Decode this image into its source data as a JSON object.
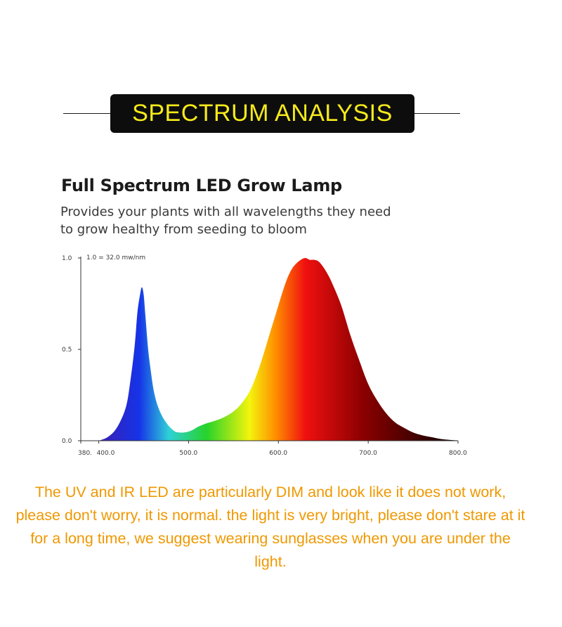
{
  "banner": {
    "title": "SPECTRUM ANALYSIS"
  },
  "chart_data": {
    "type": "area",
    "title": "Full Spectrum LED Grow Lamp",
    "subtitle_lines": [
      "Provides your plants with all wavelengths they need",
      "to grow healthy from seeding to bloom"
    ],
    "annotation": "1.0 = 32.0 mw/nm",
    "x_ticks": [
      {
        "value": 380,
        "label": "380."
      },
      {
        "value": 400,
        "label": "400.0"
      },
      {
        "value": 500,
        "label": "500.0"
      },
      {
        "value": 600,
        "label": "600.0"
      },
      {
        "value": 700,
        "label": "700.0"
      },
      {
        "value": 800,
        "label": "800.0"
      }
    ],
    "y_ticks": [
      {
        "value": 0.0,
        "label": "0.0"
      },
      {
        "value": 0.5,
        "label": "0.5"
      },
      {
        "value": 1.0,
        "label": "1.0"
      }
    ],
    "xlim": [
      380,
      800
    ],
    "ylim": [
      0,
      1.0
    ],
    "x": [
      400,
      410,
      420,
      430,
      435,
      440,
      443,
      446,
      448,
      450,
      452,
      455,
      458,
      461,
      465,
      470,
      475,
      480,
      485,
      490,
      495,
      500,
      505,
      510,
      520,
      530,
      540,
      550,
      560,
      570,
      580,
      590,
      600,
      605,
      610,
      615,
      620,
      625,
      630,
      635,
      640,
      645,
      650,
      655,
      660,
      670,
      680,
      690,
      700,
      710,
      720,
      730,
      740,
      750,
      760,
      770,
      780,
      790,
      800
    ],
    "y": [
      0.0,
      0.02,
      0.07,
      0.18,
      0.32,
      0.52,
      0.7,
      0.8,
      0.84,
      0.8,
      0.68,
      0.5,
      0.38,
      0.28,
      0.2,
      0.14,
      0.1,
      0.07,
      0.05,
      0.045,
      0.045,
      0.05,
      0.06,
      0.075,
      0.095,
      0.11,
      0.13,
      0.16,
      0.21,
      0.29,
      0.42,
      0.58,
      0.74,
      0.82,
      0.89,
      0.94,
      0.97,
      0.99,
      1.0,
      0.99,
      0.99,
      0.98,
      0.95,
      0.91,
      0.86,
      0.74,
      0.58,
      0.44,
      0.31,
      0.22,
      0.15,
      0.1,
      0.07,
      0.045,
      0.03,
      0.02,
      0.01,
      0.005,
      0.002
    ],
    "colors": {
      "violet": "#3a1fb0",
      "blue": "#1633e8",
      "cyan": "#2fd0d8",
      "green": "#27d32a",
      "yellow": "#f4f40c",
      "orange": "#ff8a00",
      "red": "#f01010",
      "dark_red": "#8a0000",
      "near_black": "#140000"
    }
  },
  "note": {
    "text": "The UV and IR LED are particularly DIM and look like it does not work, please don't worry, it is normal. the light is very bright, please don't stare at it for a long time, we suggest wearing sunglasses when you are under the light."
  }
}
